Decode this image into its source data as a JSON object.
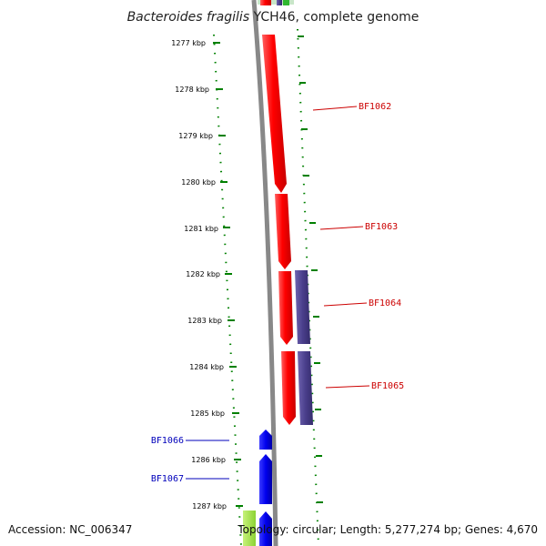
{
  "title": {
    "organism": "Bacteroides fragilis",
    "strain_suffix": " YCH46, complete genome"
  },
  "footer": {
    "accession": "Accession: NC_006347",
    "summary": "Topology: circular; Length: 5,277,274 bp; Genes: 4,670"
  },
  "colors": {
    "backbone": "#888888",
    "tick": "#008000",
    "plus_strand_gene": "#ff0000",
    "plus_strand_second_gene": "#4a3f8c",
    "minus_strand_gene": "#0000ee",
    "lime_gene": "#a5e04a",
    "right_label": "#cc0000",
    "left_label": "#0000bb"
  },
  "ticks": [
    {
      "label": "1277 kbp"
    },
    {
      "label": "1278 kbp"
    },
    {
      "label": "1279 kbp"
    },
    {
      "label": "1280 kbp"
    },
    {
      "label": "1281 kbp"
    },
    {
      "label": "1282 kbp"
    },
    {
      "label": "1283 kbp"
    },
    {
      "label": "1284 kbp"
    },
    {
      "label": "1285 kbp"
    },
    {
      "label": "1286 kbp"
    },
    {
      "label": "1287 kbp"
    }
  ],
  "gene_labels": {
    "bf1062": "BF1062",
    "bf1063": "BF1063",
    "bf1064": "BF1064",
    "bf1065": "BF1065",
    "bf1066": "BF1066",
    "bf1067": "BF1067"
  }
}
